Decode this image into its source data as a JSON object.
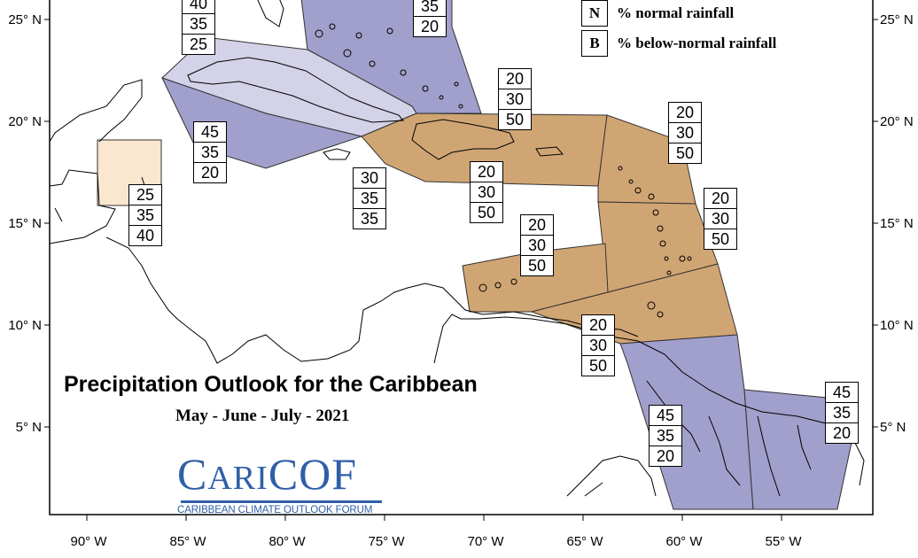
{
  "map": {
    "title": "Precipitation Outlook for the Caribbean",
    "subtitle": "May - June - July - 2021",
    "colors": {
      "above_normal": "#a19fcb",
      "above_normal_light": "#d3d2e8",
      "below_normal": "#d0a574",
      "near_normal": "#fbe6d0",
      "coastline": "#000000"
    },
    "legend": [
      {
        "key": "N",
        "label": "% normal rainfall"
      },
      {
        "key": "B",
        "label": "% below-normal rainfall"
      }
    ],
    "latitude_labels": [
      "25° N",
      "20° N",
      "15° N",
      "10° N",
      "5° N"
    ],
    "longitude_labels": [
      "90° W",
      "85° W",
      "80° W",
      "75° W",
      "70° W",
      "65° W",
      "60° W",
      "55° W"
    ],
    "regions": [
      {
        "name": "northern-bahamas",
        "probabilities": [
          "40",
          "35",
          "25"
        ]
      },
      {
        "name": "southern-bahamas",
        "probabilities": [
          "35",
          "20"
        ]
      },
      {
        "name": "cuba",
        "probabilities": [
          "45",
          "35",
          "20"
        ]
      },
      {
        "name": "belize",
        "probabilities": [
          "25",
          "35",
          "40"
        ]
      },
      {
        "name": "jamaica",
        "probabilities": [
          "30",
          "35",
          "35"
        ]
      },
      {
        "name": "greater-antilles-east",
        "probabilities": [
          "20",
          "30",
          "50"
        ]
      },
      {
        "name": "hispaniola",
        "probabilities": [
          "20",
          "30",
          "50"
        ]
      },
      {
        "name": "leeward-islands",
        "probabilities": [
          "20",
          "30",
          "50"
        ]
      },
      {
        "name": "windward-islands",
        "probabilities": [
          "20",
          "30",
          "50"
        ]
      },
      {
        "name": "abc-islands",
        "probabilities": [
          "20",
          "30",
          "50"
        ]
      },
      {
        "name": "trinidad-tobago",
        "probabilities": [
          "20",
          "30",
          "50"
        ]
      },
      {
        "name": "guyana",
        "probabilities": [
          "45",
          "35",
          "20"
        ]
      },
      {
        "name": "suriname-french-guiana",
        "probabilities": [
          "45",
          "35",
          "20"
        ]
      }
    ]
  },
  "logo": {
    "name_initial_1": "C",
    "name_small": "ARI",
    "name_rest": "COF",
    "tagline": "CARIBBEAN CLIMATE OUTLOOK FORUM"
  }
}
